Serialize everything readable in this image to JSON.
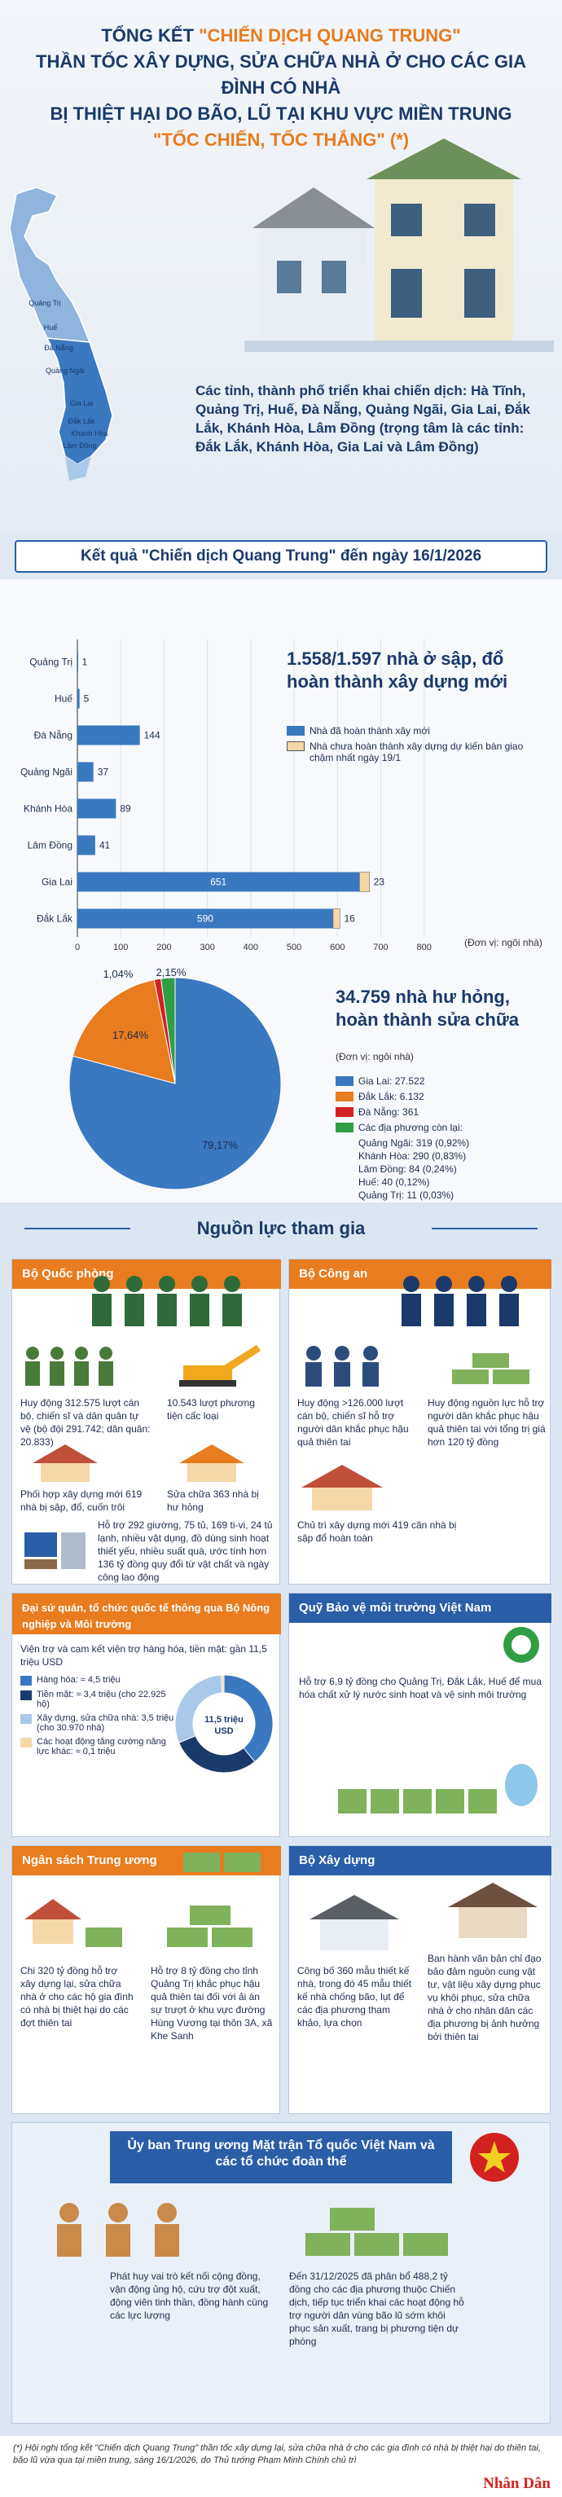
{
  "header": {
    "line1_prefix": "TỔNG KẾT ",
    "line1_highlight": "\"CHIẾN DỊCH QUANG TRUNG\"",
    "line2": "THẦN TỐC XÂY DỰNG, SỬA CHỮA NHÀ Ở CHO CÁC GIA ĐÌNH CÓ NHÀ",
    "line3": "BỊ THIỆT HẠI DO BÃO, LŨ TẠI KHU VỰC MIỀN TRUNG",
    "line4": "\"TỐC CHIẾN, TỐC THẮNG\" (*)"
  },
  "map": {
    "labels": [
      "Quảng Trị",
      "Huế",
      "Đà Nẵng",
      "Quảng Ngãi",
      "Gia Lai",
      "Đắk Lắk",
      "Khánh Hòa",
      "Lâm Đồng"
    ]
  },
  "provinces_text": "Các tỉnh, thành phố triển khai chiến dịch: Hà Tĩnh, Quảng Trị, Huế, Đà Nẵng, Quảng Ngãi, Gia Lai, Đắk Lắk, Khánh Hòa, Lâm Đồng (trọng tâm là các tỉnh: Đắk Lắk, Khánh Hòa, Gia Lai và Lâm Đồng)",
  "result_title": "Kết quả \"Chiến dịch Quang Trung\" đến ngày 16/1/2026",
  "colors": {
    "blue": "#3a78c0",
    "beige": "#f5d7a8",
    "orange": "#e87c1e",
    "red": "#d32020",
    "green": "#2f9e44",
    "navy": "#1a3a6b"
  },
  "chart_data": [
    {
      "type": "bar",
      "orientation": "horizontal",
      "stacked": true,
      "categories": [
        "Quảng Trị",
        "Huế",
        "Đà Nẵng",
        "Quảng Ngãi",
        "Khánh Hòa",
        "Lâm Đồng",
        "Gia Lai",
        "Đắk Lắk"
      ],
      "series": [
        {
          "name": "Nhà đã hoàn thành xây mới",
          "values": [
            1,
            5,
            144,
            37,
            89,
            41,
            651,
            590
          ],
          "color": "#3a78c0"
        },
        {
          "name": "Nhà chưa hoàn thành xây dựng dự kiến bàn giao chậm nhất ngày 19/1",
          "values": [
            0,
            0,
            0,
            0,
            0,
            0,
            23,
            16
          ],
          "color": "#f5d7a8"
        }
      ],
      "xlim": [
        0,
        800
      ],
      "xticks": [
        "0",
        "100",
        "200",
        "300",
        "400",
        "500",
        "600",
        "700",
        "800"
      ],
      "unit": "(Đơn vị: ngôi nhà)",
      "headline": "1.558/1.597 nhà ở sập, đổ hoàn thành xây dựng mới"
    },
    {
      "type": "pie",
      "slices": [
        {
          "label": "Gia Lai: 27.522",
          "value": 27522,
          "percent": "79,17%",
          "color": "#3a78c0"
        },
        {
          "label": "Đắk Lắk: 6.132",
          "value": 6132,
          "percent": "17,64%",
          "color": "#e87c1e"
        },
        {
          "label": "Đà Nẵng: 361",
          "value": 361,
          "percent": "1,04%",
          "color": "#d32020"
        },
        {
          "label": "Các địa phương còn lại:",
          "value": 744,
          "percent": "2,15%",
          "color": "#2f9e44"
        }
      ],
      "others": [
        "Quảng Ngãi: 319 (0,92%)",
        "Khánh Hòa: 290 (0,83%)",
        "Lâm Đồng: 84 (0,24%)",
        "Huế: 40 (0,12%)",
        "Quảng Trị: 11 (0,03%)"
      ],
      "unit": "(Đơn vị: ngôi nhà)",
      "headline": "34.759 nhà hư hỏng, hoàn thành sửa chữa"
    },
    {
      "type": "pie",
      "center_label": "11,5 triệu USD",
      "slices": [
        {
          "label": "Hàng hóa: ≈ 4,5 triệu",
          "value": 4.5,
          "color": "#3a78c0"
        },
        {
          "label": "Tiền mặt: ≈ 3,4 triệu (cho 22.925 hộ)",
          "value": 3.4,
          "color": "#1a3a6b"
        },
        {
          "label": "Xây dựng, sửa chữa nhà: 3,5 triệu (cho 30.970 nhà)",
          "value": 3.5,
          "color": "#a9c8ea"
        },
        {
          "label": "Các hoạt động tăng cường năng lực khác: ≈ 0,1 triệu",
          "value": 0.1,
          "color": "#f5d7a8"
        }
      ]
    }
  ],
  "nguon": {
    "title": "Nguồn lực tham gia",
    "bqp": {
      "title": "Bộ Quốc phòng",
      "t1": "Huy động 312.575 lượt cán bộ, chiến sĩ và dân quân tự vệ (bộ đội 291.742; dân quân: 20.833)",
      "t2": "10.543 lượt phương tiện cấc loại",
      "t3": "Phối hợp xây dựng mới 619 nhà bị sập, đổ, cuốn trôi",
      "t4": "Sửa chữa 363 nhà bị hư hỏng",
      "t5": "Hỗ trợ 292 giường, 75 tủ, 169 ti-vi, 24 tủ lạnh, nhiều vật dụng, đồ dùng sinh hoạt thiết yếu, nhiều suất quà, ước tính hơn 136 tỷ đồng quy đổi từ vật chất và ngày công lao động"
    },
    "bca": {
      "title": "Bộ Công an",
      "t1": "Huy động >126.000 lượt cán bộ, chiến sĩ hỗ trợ người dân khắc phục hậu quả thiên tai",
      "t2": "Huy động nguồn lực hỗ trợ người dân khắc phục hậu quả thiên tai với tổng trị giá hơn 120 tỷ đồng",
      "t3": "Chủ trì xây dựng mới 419 căn nhà bị sập đổ hoàn toàn"
    },
    "dsq": {
      "title": "Đại sứ quán, tổ chức quốc tế thông qua Bộ Nông nghiệp và Môi trường",
      "t1": "Viện trợ và cam kết viện trợ hàng hóa, tiền mặt: gần 11,5 triệu USD"
    },
    "qbv": {
      "title": "Quỹ Bảo vệ môi trường Việt Nam",
      "t1": "Hỗ trợ 6,9 tỷ đồng cho Quảng Trị, Đắk Lắk, Huế để mua hóa chất xử lý nước sinh hoạt và vệ sinh môi trường"
    },
    "nhtw": {
      "title": "Ngân sách Trung ương",
      "t1": "Chi 320 tỷ đồng hỗ trợ xây dựng lại, sửa chữa nhà ở cho các hộ gia đình có nhà bị thiệt hại do các đợt thiên tai",
      "t2": "Hỗ trợ 8 tỷ đồng cho tỉnh Quảng Trị khắc phục hậu quả thiên tai đối với ải án sự trượt ở khu vực đường Hùng Vương tại thôn 3A, xã Khe Sanh"
    },
    "bxd": {
      "title": "Bộ Xây dựng",
      "t1": "Công bố 360 mẫu thiết kế nhà, trong đó 45 mẫu thiết kế nhà chống bão, lụt để các địa phương tham khảo, lựa chọn",
      "t2": "Ban hành văn bản chỉ đạo bảo đảm nguồn cung vật tư, vật liệu xây dựng phục vụ khôi phục, sửa chữa nhà ở cho nhân dân các địa phương bị ảnh hưởng bởi thiên tai"
    },
    "mttq": {
      "title": "Ủy ban Trung ương Mặt trận Tổ quốc Việt Nam và các tổ chức đoàn thể",
      "t1": "Phát huy vai trò kết nối cộng đồng, vận động ủng hộ, cứu trợ đột xuất, động viên tinh thần, đồng hành cùng các lực lượng",
      "t2": "Đến 31/12/2025 đã phân bổ 488,2 tỷ đồng cho các địa phương thuộc Chiến dịch, tiếp tục triển khai các hoạt động hỗ trợ người dân vùng bão lũ sớm khôi phục sản xuất, trang bị phương tiện dự phòng"
    }
  },
  "footnote": "(*) Hội nghị tổng kết \"Chiến dịch Quang Trung\" thần tốc xây dựng lại, sửa chữa nhà ở cho các gia đình có nhà bị thiệt hại do thiên tai, bão lũ vừa qua tại miền trung, sáng 16/1/2026, do Thủ tướng Phạm Minh Chính chủ trì",
  "logo": "Nhân Dân"
}
